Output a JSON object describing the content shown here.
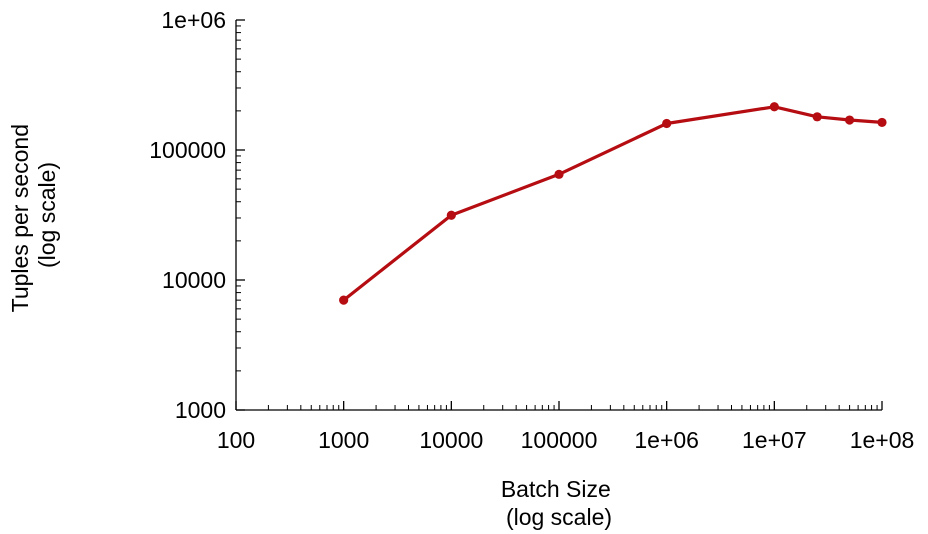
{
  "chart_data": {
    "type": "line",
    "title": "",
    "xlabel": [
      "Batch Size",
      "(log scale)"
    ],
    "ylabel": [
      "Tuples per second",
      "(log scale)"
    ],
    "xscale": "log",
    "yscale": "log",
    "xlim": [
      100,
      100000000
    ],
    "ylim": [
      1000,
      1000000
    ],
    "grid": false,
    "legend": "none",
    "x_ticks": [
      {
        "value": 100,
        "label": "100"
      },
      {
        "value": 1000,
        "label": "1000"
      },
      {
        "value": 10000,
        "label": "10000"
      },
      {
        "value": 100000,
        "label": "100000"
      },
      {
        "value": 1000000,
        "label": "1e+06"
      },
      {
        "value": 10000000,
        "label": "1e+07"
      },
      {
        "value": 100000000,
        "label": "1e+08"
      }
    ],
    "y_ticks": [
      {
        "value": 1000,
        "label": "1000"
      },
      {
        "value": 10000,
        "label": "10000"
      },
      {
        "value": 100000,
        "label": "100000"
      },
      {
        "value": 1000000,
        "label": "1e+06"
      }
    ],
    "series": [
      {
        "color": "#b50d12",
        "x": [
          1000,
          10000,
          100000,
          1000000,
          10000000,
          25000000,
          50000000,
          100000000
        ],
        "y": [
          7000,
          31500,
          65000,
          160000,
          215000,
          180000,
          170000,
          163000
        ]
      }
    ]
  }
}
